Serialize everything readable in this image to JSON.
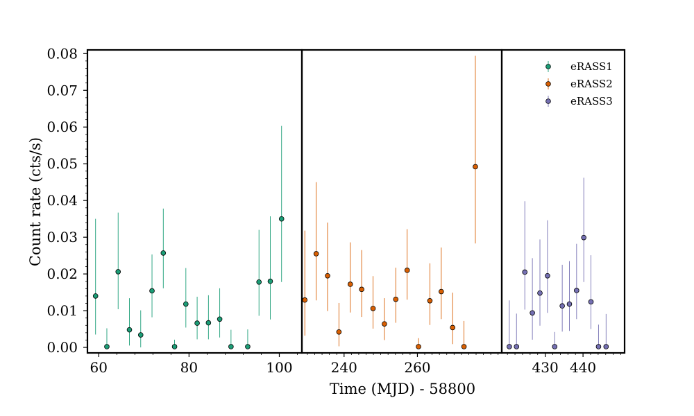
{
  "chart_data": {
    "type": "scatter",
    "xlabel": "Time (MJD) - 58800",
    "ylabel": "Count rate (cts/s)",
    "ylim": [
      -0.0015,
      0.081
    ],
    "yticks": [
      "0.00",
      "0.01",
      "0.02",
      "0.03",
      "0.04",
      "0.05",
      "0.06",
      "0.07",
      "0.08"
    ],
    "legend_position": "top-right",
    "grid": false,
    "panels": [
      {
        "xlim": [
          57.5,
          105
        ],
        "xticks": [
          60,
          80,
          100
        ]
      },
      {
        "xlim": [
          228.5,
          283
        ],
        "xticks": [
          240,
          260
        ]
      },
      {
        "xlim": [
          418.5,
          451
        ],
        "xticks": [
          430,
          440
        ]
      }
    ],
    "series": [
      {
        "name": "eRASS1",
        "color": "#1b9e77",
        "panel": 0,
        "points": [
          {
            "x": 59.3,
            "y": 0.014,
            "lo": 0.0035,
            "hi": 0.035
          },
          {
            "x": 61.8,
            "y": 0.0002,
            "lo": 0.0,
            "hi": 0.0052
          },
          {
            "x": 64.3,
            "y": 0.0206,
            "lo": 0.0104,
            "hi": 0.0367
          },
          {
            "x": 66.8,
            "y": 0.0048,
            "lo": 0.0005,
            "hi": 0.0134
          },
          {
            "x": 69.3,
            "y": 0.0034,
            "lo": 0.0,
            "hi": 0.0101
          },
          {
            "x": 71.8,
            "y": 0.0154,
            "lo": 0.0082,
            "hi": 0.0253
          },
          {
            "x": 74.3,
            "y": 0.0257,
            "lo": 0.0161,
            "hi": 0.0378
          },
          {
            "x": 76.8,
            "y": 0.0002,
            "lo": 0.0,
            "hi": 0.0021
          },
          {
            "x": 79.3,
            "y": 0.0118,
            "lo": 0.0054,
            "hi": 0.0216
          },
          {
            "x": 81.8,
            "y": 0.0066,
            "lo": 0.0022,
            "hi": 0.0138
          },
          {
            "x": 84.3,
            "y": 0.0067,
            "lo": 0.0022,
            "hi": 0.0142
          },
          {
            "x": 86.8,
            "y": 0.0077,
            "lo": 0.0027,
            "hi": 0.0161
          },
          {
            "x": 89.3,
            "y": 0.0002,
            "lo": 0.0,
            "hi": 0.0048
          },
          {
            "x": 93.0,
            "y": 0.0002,
            "lo": 0.0,
            "hi": 0.0049
          },
          {
            "x": 95.5,
            "y": 0.0178,
            "lo": 0.0086,
            "hi": 0.032
          },
          {
            "x": 98.0,
            "y": 0.018,
            "lo": 0.0076,
            "hi": 0.0357
          },
          {
            "x": 100.5,
            "y": 0.035,
            "lo": 0.0178,
            "hi": 0.0603
          }
        ]
      },
      {
        "name": "eRASS2",
        "color": "#d95f02",
        "panel": 1,
        "points": [
          {
            "x": 229.3,
            "y": 0.0129,
            "lo": 0.0032,
            "hi": 0.0318
          },
          {
            "x": 232.4,
            "y": 0.0255,
            "lo": 0.0128,
            "hi": 0.045
          },
          {
            "x": 235.5,
            "y": 0.0195,
            "lo": 0.0099,
            "hi": 0.034
          },
          {
            "x": 238.6,
            "y": 0.0042,
            "lo": 0.0003,
            "hi": 0.0121
          },
          {
            "x": 241.7,
            "y": 0.0172,
            "lo": 0.0095,
            "hi": 0.0286
          },
          {
            "x": 244.8,
            "y": 0.0158,
            "lo": 0.0083,
            "hi": 0.0265
          },
          {
            "x": 247.9,
            "y": 0.0106,
            "lo": 0.0051,
            "hi": 0.0194
          },
          {
            "x": 251.0,
            "y": 0.0064,
            "lo": 0.002,
            "hi": 0.0134
          },
          {
            "x": 254.1,
            "y": 0.0131,
            "lo": 0.0067,
            "hi": 0.0217
          },
          {
            "x": 257.2,
            "y": 0.021,
            "lo": 0.013,
            "hi": 0.0322
          },
          {
            "x": 260.3,
            "y": 0.0002,
            "lo": 0.0,
            "hi": 0.0025
          },
          {
            "x": 263.4,
            "y": 0.0127,
            "lo": 0.0061,
            "hi": 0.0229
          },
          {
            "x": 266.5,
            "y": 0.0152,
            "lo": 0.0077,
            "hi": 0.0272
          },
          {
            "x": 269.6,
            "y": 0.0054,
            "lo": 0.0009,
            "hi": 0.0149
          },
          {
            "x": 272.7,
            "y": 0.0002,
            "lo": 0.0,
            "hi": 0.0072
          },
          {
            "x": 275.8,
            "y": 0.0492,
            "lo": 0.0283,
            "hi": 0.0794
          }
        ]
      },
      {
        "name": "eRASS3",
        "color": "#7570b3",
        "panel": 2,
        "points": [
          {
            "x": 420.5,
            "y": 0.0002,
            "lo": 0.0,
            "hi": 0.0128
          },
          {
            "x": 422.4,
            "y": 0.0002,
            "lo": 0.0,
            "hi": 0.0092
          },
          {
            "x": 424.6,
            "y": 0.0205,
            "lo": 0.0103,
            "hi": 0.0398
          },
          {
            "x": 426.6,
            "y": 0.0094,
            "lo": 0.0021,
            "hi": 0.0243
          },
          {
            "x": 428.6,
            "y": 0.0148,
            "lo": 0.0059,
            "hi": 0.0294
          },
          {
            "x": 430.6,
            "y": 0.0195,
            "lo": 0.0094,
            "hi": 0.0346
          },
          {
            "x": 432.5,
            "y": 0.0002,
            "lo": 0.0,
            "hi": 0.0042
          },
          {
            "x": 434.5,
            "y": 0.0113,
            "lo": 0.0043,
            "hi": 0.0225
          },
          {
            "x": 436.4,
            "y": 0.0118,
            "lo": 0.0045,
            "hi": 0.0235
          },
          {
            "x": 438.3,
            "y": 0.0155,
            "lo": 0.0077,
            "hi": 0.0282
          },
          {
            "x": 440.2,
            "y": 0.0299,
            "lo": 0.0178,
            "hi": 0.0462
          },
          {
            "x": 442.1,
            "y": 0.0124,
            "lo": 0.005,
            "hi": 0.0251
          },
          {
            "x": 444.1,
            "y": 0.0002,
            "lo": 0.0,
            "hi": 0.0062
          },
          {
            "x": 446.1,
            "y": 0.0002,
            "lo": 0.0,
            "hi": 0.0091
          }
        ]
      }
    ]
  }
}
